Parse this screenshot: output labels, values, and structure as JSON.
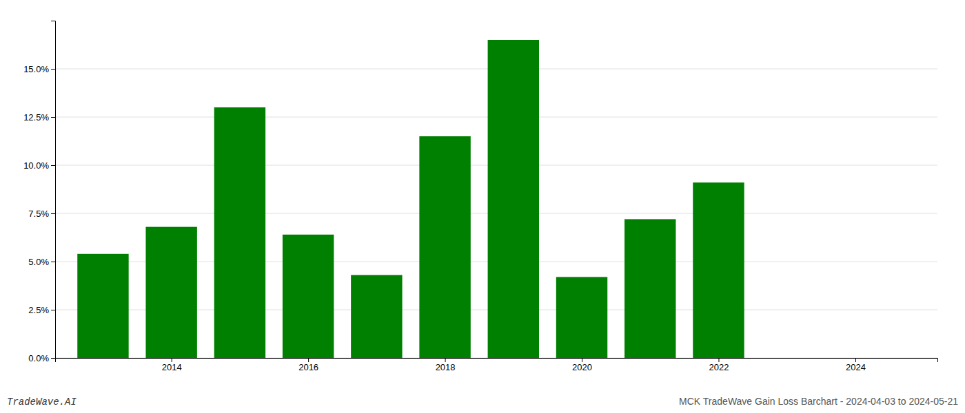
{
  "chart_data": {
    "type": "bar",
    "x": [
      2013,
      2014,
      2015,
      2016,
      2017,
      2018,
      2019,
      2020,
      2021,
      2022
    ],
    "values": [
      0.054,
      0.068,
      0.13,
      0.064,
      0.043,
      0.115,
      0.165,
      0.042,
      0.072,
      0.091
    ],
    "color": "#008000",
    "xlim": [
      2012.3,
      2025.2
    ],
    "xticks": [
      2014,
      2016,
      2018,
      2020,
      2022,
      2024
    ],
    "ylim": [
      0.0,
      0.175
    ],
    "yticks": [
      {
        "value": 0.0,
        "label": "0.0%"
      },
      {
        "value": 0.025,
        "label": "2.5%"
      },
      {
        "value": 0.05,
        "label": "5.0%"
      },
      {
        "value": 0.075,
        "label": "7.5%"
      },
      {
        "value": 0.1,
        "label": "10.0%"
      },
      {
        "value": 0.125,
        "label": "12.5%"
      },
      {
        "value": 0.15,
        "label": "15.0%"
      }
    ],
    "grid": true,
    "annotations": [
      "TradeWave.AI",
      "MCK TradeWave Gain Loss Barchart - 2024-04-03 to 2024-05-21"
    ]
  }
}
